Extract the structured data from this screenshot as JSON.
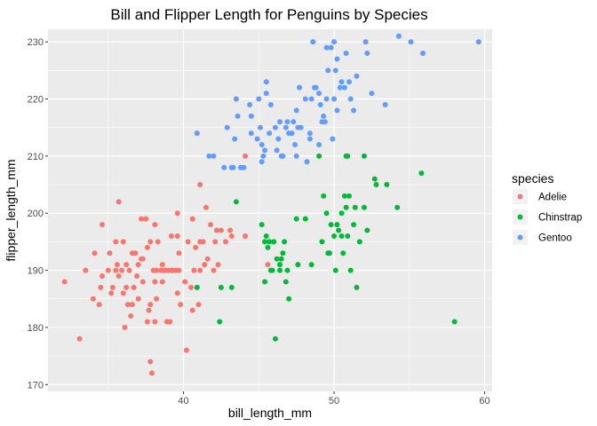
{
  "chart_data": {
    "type": "scatter",
    "title": "Bill and Flipper Length for Penguins by Species",
    "xlabel": "bill_length_mm",
    "ylabel": "flipper_length_mm",
    "xlim": [
      31.0,
      60.5
    ],
    "ylim": [
      168.8,
      232.2
    ],
    "x_ticks": [
      40,
      50,
      60
    ],
    "y_ticks": [
      170,
      180,
      190,
      200,
      210,
      220,
      230
    ],
    "grid": true,
    "legend": {
      "title": "species",
      "position": "right"
    },
    "series": [
      {
        "name": "Adelie",
        "color": "#F8766D",
        "points": [
          [
            32.1,
            188
          ],
          [
            33.1,
            178
          ],
          [
            33.5,
            190
          ],
          [
            34.0,
            185
          ],
          [
            34.1,
            193
          ],
          [
            34.4,
            184
          ],
          [
            34.5,
            187
          ],
          [
            34.6,
            189
          ],
          [
            34.6,
            198
          ],
          [
            35.0,
            190
          ],
          [
            35.1,
            193
          ],
          [
            35.2,
            186
          ],
          [
            35.3,
            187
          ],
          [
            35.5,
            195
          ],
          [
            35.5,
            190
          ],
          [
            35.6,
            191
          ],
          [
            35.7,
            189
          ],
          [
            35.7,
            202
          ],
          [
            35.9,
            190
          ],
          [
            36.0,
            195
          ],
          [
            36.0,
            186
          ],
          [
            36.2,
            187
          ],
          [
            36.2,
            191
          ],
          [
            36.3,
            184
          ],
          [
            36.4,
            190
          ],
          [
            36.5,
            182
          ],
          [
            36.6,
            184
          ],
          [
            36.6,
            193
          ],
          [
            36.7,
            187
          ],
          [
            36.8,
            193
          ],
          [
            36.9,
            189
          ],
          [
            37.0,
            185
          ],
          [
            37.2,
            199
          ],
          [
            37.2,
            192
          ],
          [
            37.3,
            188
          ],
          [
            37.3,
            192
          ],
          [
            37.5,
            199
          ],
          [
            37.6,
            181
          ],
          [
            37.6,
            194
          ],
          [
            37.7,
            183
          ],
          [
            37.8,
            174
          ],
          [
            37.8,
            184
          ],
          [
            37.8,
            195
          ],
          [
            37.9,
            172
          ],
          [
            38.0,
            190
          ],
          [
            38.1,
            181
          ],
          [
            38.1,
            188
          ],
          [
            38.1,
            198
          ],
          [
            38.2,
            185
          ],
          [
            38.2,
            190
          ],
          [
            38.3,
            195
          ],
          [
            38.5,
            190
          ],
          [
            38.6,
            188
          ],
          [
            38.6,
            191
          ],
          [
            38.7,
            190
          ],
          [
            38.8,
            190
          ],
          [
            38.9,
            181
          ],
          [
            39.0,
            190
          ],
          [
            39.1,
            181
          ],
          [
            39.2,
            196
          ],
          [
            39.2,
            190
          ],
          [
            39.3,
            190
          ],
          [
            39.5,
            190
          ],
          [
            39.6,
            186
          ],
          [
            39.6,
            196
          ],
          [
            39.7,
            193
          ],
          [
            39.7,
            190
          ],
          [
            39.8,
            184
          ],
          [
            40.1,
            188
          ],
          [
            40.2,
            176
          ],
          [
            40.3,
            195
          ],
          [
            40.5,
            187
          ],
          [
            40.6,
            199
          ],
          [
            40.6,
            183
          ],
          [
            40.7,
            190
          ],
          [
            40.8,
            194
          ],
          [
            40.9,
            187
          ],
          [
            41.0,
            184
          ],
          [
            41.1,
            195
          ],
          [
            41.1,
            190
          ],
          [
            41.3,
            195
          ],
          [
            41.4,
            191
          ],
          [
            41.5,
            201
          ],
          [
            41.6,
            192
          ],
          [
            41.8,
            198
          ],
          [
            42.0,
            190
          ],
          [
            42.1,
            195
          ],
          [
            42.2,
            197
          ],
          [
            42.3,
            191
          ],
          [
            42.5,
            197
          ],
          [
            42.8,
            195
          ],
          [
            43.1,
            197
          ],
          [
            43.2,
            196
          ],
          [
            44.1,
            196
          ],
          [
            45.6,
            191
          ],
          [
            46.0,
            195
          ],
          [
            44.1,
            210
          ],
          [
            41.1,
            205
          ],
          [
            40.9,
            214
          ],
          [
            39.6,
            200
          ],
          [
            37.0,
            191
          ],
          [
            36.1,
            180
          ]
        ]
      },
      {
        "name": "Chinstrap",
        "color": "#00BA38",
        "points": [
          [
            40.9,
            187
          ],
          [
            42.4,
            181
          ],
          [
            42.5,
            187
          ],
          [
            43.2,
            187
          ],
          [
            43.5,
            202
          ],
          [
            45.2,
            198
          ],
          [
            45.4,
            188
          ],
          [
            45.5,
            196
          ],
          [
            45.6,
            194
          ],
          [
            45.7,
            195
          ],
          [
            45.8,
            190
          ],
          [
            45.9,
            190
          ],
          [
            46.0,
            195
          ],
          [
            46.1,
            178
          ],
          [
            46.2,
            192
          ],
          [
            46.4,
            191
          ],
          [
            46.6,
            193
          ],
          [
            46.7,
            195
          ],
          [
            46.8,
            188
          ],
          [
            46.9,
            190
          ],
          [
            47.0,
            185
          ],
          [
            47.5,
            199
          ],
          [
            47.6,
            191
          ],
          [
            49.0,
            210
          ],
          [
            49.2,
            195
          ],
          [
            49.3,
            203
          ],
          [
            49.5,
            200
          ],
          [
            49.6,
            193
          ],
          [
            49.8,
            198
          ],
          [
            50.0,
            196
          ],
          [
            50.1,
            190
          ],
          [
            50.2,
            198
          ],
          [
            50.3,
            197
          ],
          [
            50.5,
            196
          ],
          [
            50.6,
            193
          ],
          [
            50.7,
            203
          ],
          [
            50.8,
            201
          ],
          [
            50.9,
            196
          ],
          [
            51.0,
            203
          ],
          [
            51.1,
            190
          ],
          [
            51.3,
            198
          ],
          [
            51.4,
            201
          ],
          [
            51.5,
            187
          ],
          [
            51.7,
            195
          ],
          [
            52.0,
            201
          ],
          [
            52.0,
            210
          ],
          [
            52.2,
            197
          ],
          [
            52.7,
            206
          ],
          [
            53.5,
            205
          ],
          [
            54.2,
            201
          ],
          [
            55.8,
            207
          ],
          [
            58.0,
            181
          ],
          [
            46.5,
            192
          ],
          [
            46.4,
            190
          ],
          [
            48.5,
            191
          ],
          [
            50.9,
            210
          ],
          [
            45.4,
            195
          ],
          [
            52.8,
            205
          ],
          [
            48.1,
            199
          ],
          [
            49.7,
            193
          ],
          [
            50.5,
            200
          ],
          [
            50.8,
            210
          ]
        ]
      },
      {
        "name": "Gentoo",
        "color": "#619CFF",
        "points": [
          [
            40.9,
            214
          ],
          [
            41.7,
            210
          ],
          [
            42.0,
            210
          ],
          [
            42.7,
            208
          ],
          [
            42.9,
            215
          ],
          [
            43.2,
            208
          ],
          [
            43.3,
            208
          ],
          [
            43.4,
            213
          ],
          [
            43.5,
            220
          ],
          [
            43.6,
            217
          ],
          [
            43.8,
            208
          ],
          [
            44.0,
            208
          ],
          [
            44.4,
            219
          ],
          [
            44.5,
            214
          ],
          [
            44.9,
            213
          ],
          [
            45.0,
            220
          ],
          [
            45.1,
            215
          ],
          [
            45.2,
            209
          ],
          [
            45.3,
            210
          ],
          [
            45.4,
            211
          ],
          [
            45.5,
            221
          ],
          [
            45.5,
            223
          ],
          [
            45.7,
            214
          ],
          [
            45.8,
            219
          ],
          [
            46.1,
            215
          ],
          [
            46.2,
            211
          ],
          [
            46.4,
            216
          ],
          [
            46.5,
            210
          ],
          [
            46.6,
            210
          ],
          [
            46.8,
            215
          ],
          [
            46.9,
            216
          ],
          [
            47.2,
            214
          ],
          [
            47.3,
            216
          ],
          [
            47.4,
            212
          ],
          [
            47.5,
            218
          ],
          [
            47.6,
            215
          ],
          [
            47.7,
            222
          ],
          [
            47.8,
            215
          ],
          [
            48.1,
            220
          ],
          [
            48.2,
            209
          ],
          [
            48.4,
            214
          ],
          [
            48.5,
            220
          ],
          [
            48.6,
            230
          ],
          [
            48.7,
            222
          ],
          [
            48.8,
            222
          ],
          [
            49.0,
            221
          ],
          [
            49.1,
            219
          ],
          [
            49.2,
            216
          ],
          [
            49.3,
            217
          ],
          [
            49.4,
            216
          ],
          [
            49.5,
            229
          ],
          [
            49.6,
            225
          ],
          [
            49.8,
            229
          ],
          [
            49.9,
            213
          ],
          [
            50.0,
            230
          ],
          [
            50.1,
            225
          ],
          [
            50.2,
            218
          ],
          [
            50.4,
            222
          ],
          [
            50.5,
            223
          ],
          [
            50.7,
            222
          ],
          [
            50.8,
            228
          ],
          [
            51.1,
            220
          ],
          [
            51.3,
            218
          ],
          [
            51.5,
            224
          ],
          [
            52.1,
            230
          ],
          [
            52.2,
            228
          ],
          [
            52.5,
            221
          ],
          [
            53.4,
            219
          ],
          [
            54.3,
            231
          ],
          [
            55.1,
            230
          ],
          [
            55.9,
            228
          ],
          [
            59.6,
            230
          ],
          [
            45.2,
            212
          ],
          [
            44.5,
            217
          ],
          [
            46.3,
            213
          ],
          [
            47.0,
            214
          ],
          [
            48.4,
            213
          ],
          [
            49.5,
            220
          ],
          [
            50.0,
            220
          ],
          [
            51.0,
            223
          ],
          [
            50.2,
            227
          ],
          [
            49.0,
            212
          ],
          [
            47.5,
            210
          ]
        ]
      }
    ]
  }
}
